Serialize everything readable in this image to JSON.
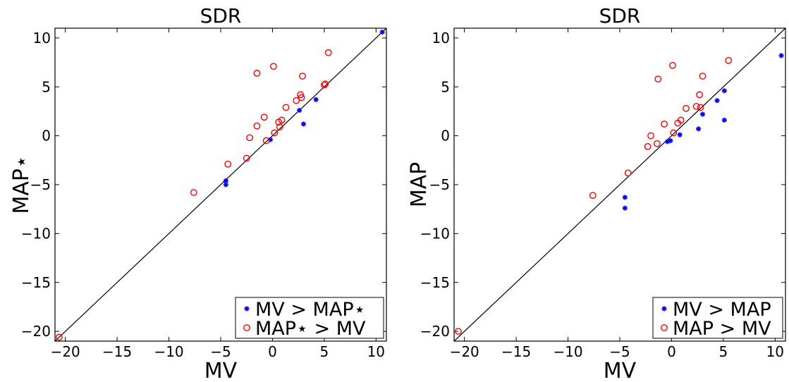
{
  "chart_data": [
    {
      "type": "scatter",
      "title": "SDR",
      "xlabel": "MV",
      "ylabel": "MAP⋆",
      "xlim": [
        -21,
        11
      ],
      "ylim": [
        -21,
        11
      ],
      "xticks": [
        -20,
        -15,
        -10,
        -5,
        0,
        5,
        10
      ],
      "yticks": [
        -20,
        -15,
        -10,
        -5,
        0,
        5,
        10
      ],
      "xtick_labels": [
        "−20",
        "−15",
        "−10",
        "−5",
        "0",
        "5",
        "10"
      ],
      "ytick_labels": [
        "−20",
        "−15",
        "−10",
        "−5",
        "0",
        "5",
        "10"
      ],
      "diagonal": true,
      "legend_position": "lower-right",
      "series": [
        {
          "name": "MV > MAP⋆",
          "marker": "asterisk",
          "color": "#0000ff",
          "points": [
            [
              10.6,
              10.6
            ],
            [
              4.2,
              3.7
            ],
            [
              2.6,
              2.6
            ],
            [
              3.0,
              1.2
            ],
            [
              -0.2,
              -0.4
            ],
            [
              -4.5,
              -4.6
            ],
            [
              -4.5,
              -5.0
            ]
          ]
        },
        {
          "name": "MAP⋆ > MV",
          "marker": "circle",
          "color": "#ff0000",
          "points": [
            [
              -20.6,
              -20.6
            ],
            [
              -7.6,
              -5.8
            ],
            [
              -4.3,
              -2.9
            ],
            [
              -2.5,
              -2.3
            ],
            [
              -2.2,
              -0.2
            ],
            [
              -1.5,
              1.0
            ],
            [
              -1.5,
              6.4
            ],
            [
              -0.8,
              1.9
            ],
            [
              -0.6,
              -0.5
            ],
            [
              0.1,
              7.1
            ],
            [
              0.2,
              0.3
            ],
            [
              0.6,
              1.4
            ],
            [
              0.7,
              0.9
            ],
            [
              0.9,
              1.6
            ],
            [
              1.3,
              2.9
            ],
            [
              2.3,
              3.6
            ],
            [
              2.7,
              4.2
            ],
            [
              2.8,
              3.9
            ],
            [
              2.9,
              6.1
            ],
            [
              5.0,
              5.2
            ],
            [
              5.1,
              5.3
            ],
            [
              5.4,
              8.5
            ]
          ]
        }
      ]
    },
    {
      "type": "scatter",
      "title": "SDR",
      "xlabel": "MV",
      "ylabel": "MAP",
      "xlim": [
        -21,
        11
      ],
      "ylim": [
        -21,
        11
      ],
      "xticks": [
        -20,
        -15,
        -10,
        -5,
        0,
        5,
        10
      ],
      "yticks": [
        -20,
        -15,
        -10,
        -5,
        0,
        5,
        10
      ],
      "xtick_labels": [
        "−20",
        "−15",
        "−10",
        "−5",
        "0",
        "5",
        "10"
      ],
      "ytick_labels": [
        "−20",
        "−15",
        "−10",
        "−5",
        "0",
        "5",
        "10"
      ],
      "diagonal": true,
      "legend_position": "lower-right",
      "series": [
        {
          "name": "MV > MAP",
          "marker": "asterisk",
          "color": "#0000ff",
          "points": [
            [
              10.6,
              8.2
            ],
            [
              5.1,
              4.6
            ],
            [
              4.4,
              3.6
            ],
            [
              3.0,
              2.2
            ],
            [
              2.6,
              0.7
            ],
            [
              5.1,
              1.6
            ],
            [
              0.8,
              0.1
            ],
            [
              -0.1,
              -0.5
            ],
            [
              -0.4,
              -0.6
            ],
            [
              -4.5,
              -6.3
            ],
            [
              -4.5,
              -7.4
            ]
          ]
        },
        {
          "name": "MAP > MV",
          "marker": "circle",
          "color": "#ff0000",
          "points": [
            [
              -20.6,
              -20.0
            ],
            [
              -7.6,
              -6.1
            ],
            [
              -4.2,
              -3.8
            ],
            [
              -2.3,
              -1.1
            ],
            [
              -2.0,
              0.0
            ],
            [
              -1.4,
              -0.8
            ],
            [
              -1.3,
              5.8
            ],
            [
              -0.7,
              1.2
            ],
            [
              0.1,
              7.2
            ],
            [
              0.2,
              0.3
            ],
            [
              0.6,
              1.3
            ],
            [
              0.9,
              1.6
            ],
            [
              1.4,
              2.8
            ],
            [
              2.4,
              3.0
            ],
            [
              2.7,
              4.2
            ],
            [
              2.8,
              2.9
            ],
            [
              3.0,
              6.1
            ],
            [
              5.5,
              7.7
            ]
          ]
        }
      ]
    }
  ]
}
